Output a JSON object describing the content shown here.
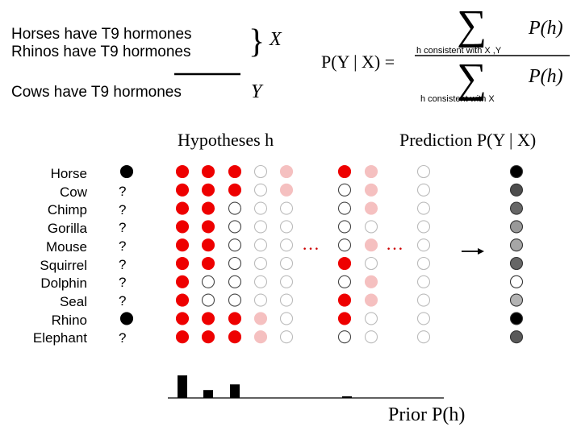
{
  "premises": [
    "Horses have T9 hormones",
    "Rhinos have T9 hormones"
  ],
  "conclusion": "Cows have T9 hormones",
  "labels": {
    "x": "X",
    "y": "Y",
    "hypotheses": "Hypotheses h",
    "prediction": "Prediction P(Y | X)",
    "prior": "Prior  P(h)",
    "ellipsis": "…"
  },
  "formula": {
    "lhs": "P(Y | X) =",
    "numerator_term": "P(h)",
    "numerator_sub": "h consistent with X ,Y",
    "denominator_term": "P(h)",
    "denominator_sub": "h consistent with X",
    "sum_symbol": "∑"
  },
  "animals": [
    "Horse",
    "Cow",
    "Chimp",
    "Gorilla",
    "Mouse",
    "Squirrel",
    "Dolphin",
    "Seal",
    "Rhino",
    "Elephant"
  ],
  "known": [
    "observed",
    "?",
    "?",
    "?",
    "?",
    "?",
    "?",
    "?",
    "observed",
    "?"
  ],
  "colors": {
    "red": "#ee0000",
    "pink": "#f5c0c0",
    "empty_outline": "#444444",
    "empty_light_outline": "#bbbbbb",
    "black": "#000000"
  },
  "hypothesis_groups": [
    {
      "style": "strong",
      "columns": [
        [
          "r",
          "r",
          "r",
          "r",
          "r",
          "r",
          "r",
          "r",
          "r",
          "r"
        ],
        [
          "r",
          "r",
          "r",
          "r",
          "r",
          "r",
          "o",
          "o",
          "r",
          "r"
        ],
        [
          "r",
          "r",
          "o",
          "o",
          "o",
          "o",
          "o",
          "o",
          "r",
          "r"
        ]
      ]
    },
    {
      "style": "faded",
      "columns": [
        [
          "o",
          "o",
          "o",
          "o",
          "o",
          "o",
          "o",
          "o",
          "p",
          "p"
        ],
        [
          "p",
          "p",
          "o",
          "o",
          "o",
          "o",
          "o",
          "o",
          "o",
          "o"
        ]
      ]
    },
    {
      "style": "mixed",
      "columns": [
        [
          "r",
          "o",
          "o",
          "o",
          "o",
          "r",
          "o",
          "r",
          "r",
          "o"
        ]
      ]
    },
    {
      "style": "faded",
      "columns": [
        [
          "p",
          "p",
          "p",
          "o",
          "p",
          "o",
          "p",
          "p",
          "o",
          "o"
        ],
        [
          "o",
          "o",
          "o",
          "o",
          "o",
          "o",
          "o",
          "o",
          "o",
          "o"
        ]
      ]
    }
  ],
  "prediction": [
    1.0,
    0.7,
    0.6,
    0.4,
    0.35,
    0.6,
    0.0,
    0.3,
    1.0,
    0.65
  ],
  "prior_bars": [
    {
      "column": 0,
      "value": 1.0
    },
    {
      "column": 1,
      "value": 0.35
    },
    {
      "column": 2,
      "value": 0.6
    },
    {
      "column": 6,
      "value": 0.05
    }
  ]
}
